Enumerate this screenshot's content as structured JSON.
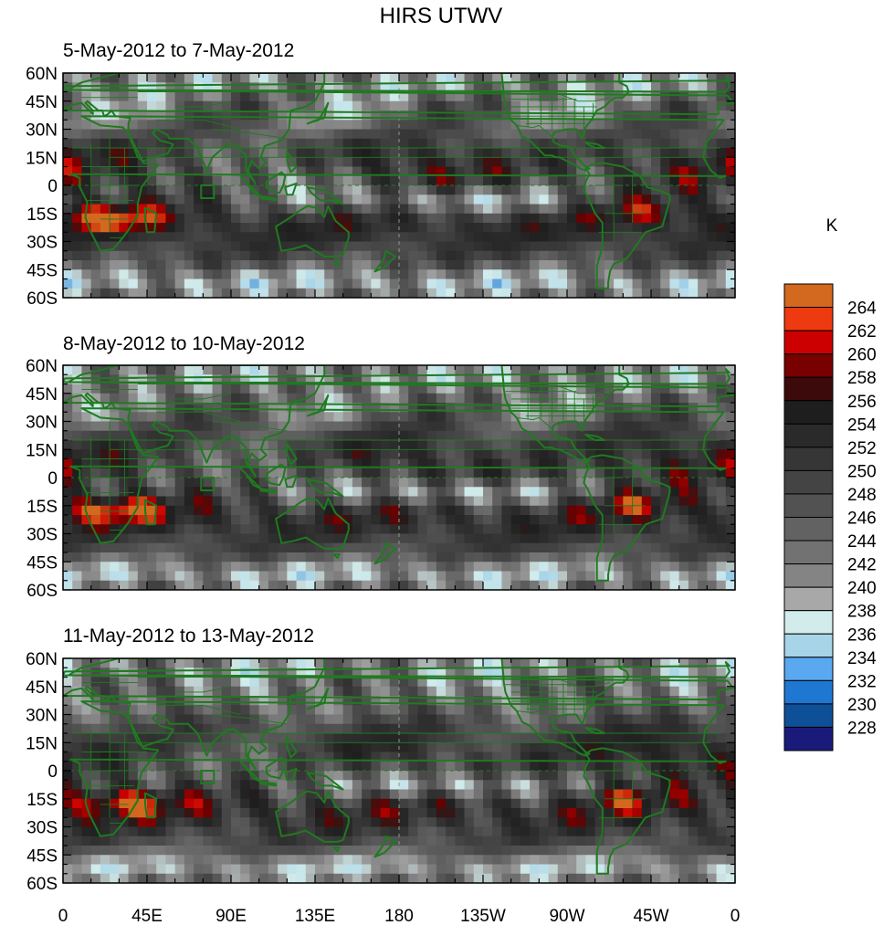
{
  "figure": {
    "title": "HIRS UTWV",
    "x_tick_labels": [
      "0",
      "45E",
      "90E",
      "135E",
      "180",
      "135W",
      "90W",
      "45W",
      "0"
    ],
    "y_tick_labels": [
      "60N",
      "45N",
      "30N",
      "15N",
      "0",
      "15S",
      "30S",
      "45S",
      "60S"
    ]
  },
  "panels": [
    {
      "title": "5-May-2012 to 7-May-2012"
    },
    {
      "title": "8-May-2012 to 10-May-2012"
    },
    {
      "title": "11-May-2012 to 13-May-2012"
    }
  ],
  "colorbar": {
    "unit": "K",
    "labels": [
      "264",
      "262",
      "260",
      "258",
      "256",
      "254",
      "252",
      "250",
      "248",
      "246",
      "244",
      "242",
      "240",
      "238",
      "236",
      "234",
      "232",
      "230",
      "228"
    ],
    "colors_top_to_bottom": [
      "#d2691e",
      "#ee3a10",
      "#cc0000",
      "#780000",
      "#3c0a0a",
      "#1e1e1e",
      "#2a2a2a",
      "#363636",
      "#444444",
      "#525252",
      "#626262",
      "#727272",
      "#848484",
      "#a8a8a8",
      "#d2ecec",
      "#a8d4e8",
      "#5aa8f0",
      "#1e78d2",
      "#0e5098",
      "#1a1a7a"
    ]
  },
  "map_style": {
    "coastline_color": "#1f7a1f",
    "scale": [
      {
        "value": 228,
        "color": "#1a1a7a"
      },
      {
        "value": 231,
        "color": "#1e78d2"
      },
      {
        "value": 234,
        "color": "#a8d4e8"
      },
      {
        "value": 237,
        "color": "#d2ecec"
      },
      {
        "value": 240,
        "color": "#9a9a9a"
      },
      {
        "value": 246,
        "color": "#5a5a5a"
      },
      {
        "value": 252,
        "color": "#303030"
      },
      {
        "value": 256,
        "color": "#1e1e1e"
      },
      {
        "value": 258,
        "color": "#6a0000"
      },
      {
        "value": 261,
        "color": "#cc0000"
      },
      {
        "value": 264,
        "color": "#d2691e"
      }
    ]
  }
}
